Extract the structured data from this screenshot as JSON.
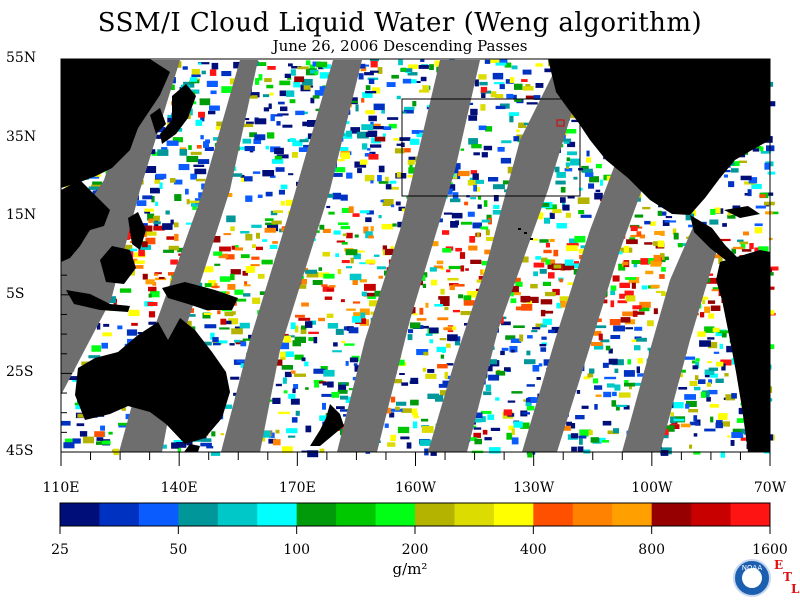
{
  "title": "SSM/I Cloud Liquid Water (Weng algorithm)",
  "subtitle": "June 26, 2006  Descending Passes",
  "map": {
    "lat_labels": [
      "55N",
      "35N",
      "15N",
      "5S",
      "25S",
      "45S"
    ],
    "lon_labels": [
      "110E",
      "140E",
      "170E",
      "160W",
      "130W",
      "100W",
      "70W"
    ],
    "land_color": "#000000",
    "no_data_color": "#6e6e6e",
    "clear_color": "#ffffff",
    "highlight_box": "rectangle, eastern North Pacific"
  },
  "colorbar": {
    "tick_labels": [
      "25",
      "50",
      "100",
      "200",
      "400",
      "800",
      "1600"
    ],
    "units": "g/m²",
    "colors": [
      "#000e7a",
      "#0032c2",
      "#0a5cff",
      "#00969a",
      "#00c8c8",
      "#00ffff",
      "#009a0a",
      "#00c800",
      "#00ff14",
      "#b4b400",
      "#dcdc00",
      "#ffff00",
      "#ff5000",
      "#ff8200",
      "#ffa000",
      "#960000",
      "#c80000",
      "#ff1414"
    ]
  },
  "logos": {
    "noaa_text": "NOAA",
    "etl_letters": [
      "E",
      "T",
      "L"
    ]
  }
}
